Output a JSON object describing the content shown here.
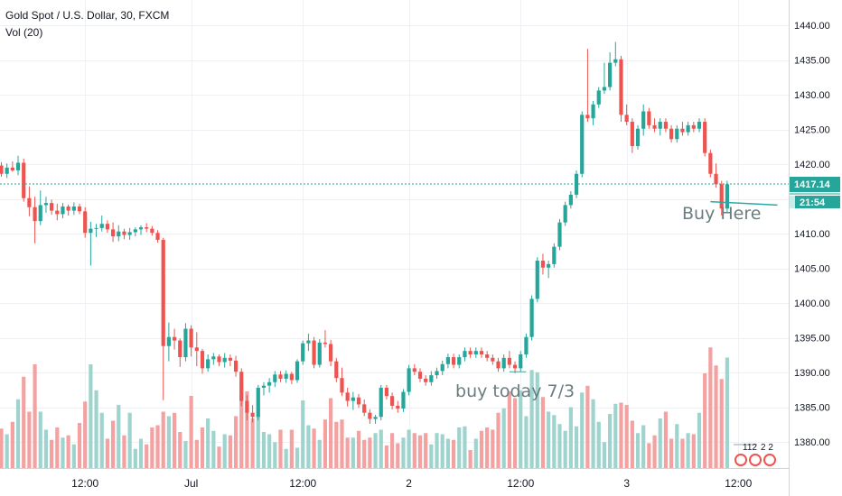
{
  "header": {
    "symbol_line": "Gold Spot / U.S. Dollar, 30, FXCM",
    "volume_line": "Vol (20)"
  },
  "colors": {
    "up": "#26a69a",
    "down": "#ef5350",
    "vol_up": "#9fd4ce",
    "vol_down": "#f3a1a1",
    "grid": "#eef0f3",
    "last_price": "#26a69a"
  },
  "price_tags": {
    "last_price": "1417.14",
    "countdown": "21:54"
  },
  "watermark_icons": [
    "tradingview-logo-icon",
    "flag-icon"
  ],
  "badge": {
    "value": "112",
    "counts": "2 2"
  },
  "chart_data": {
    "type": "candlestick",
    "y_ticks": [
      1380,
      1385,
      1390,
      1395,
      1400,
      1405,
      1410,
      1415,
      1420,
      1425,
      1430,
      1435,
      1440
    ],
    "y_tick_labels": [
      "1380.00",
      "1385.00",
      "1390.00",
      "1395.00",
      "1400.00",
      "1405.00",
      "1410.00",
      "1415.00",
      "1420.00",
      "1425.00",
      "1430.00",
      "1435.00",
      "1440.00"
    ],
    "ylim": [
      1376,
      1442
    ],
    "x_tick_labels": [
      "12:00",
      "Jul",
      "12:00",
      "2",
      "12:00",
      "3",
      "12:00"
    ],
    "x_tick_bars": [
      15,
      34,
      54,
      73,
      93,
      112,
      132
    ],
    "last_price": 1417.14,
    "annotations": [
      {
        "text": "buy today 7/3",
        "bar": 92,
        "price": 1386.5
      },
      {
        "text": "Buy Here",
        "bar": 129,
        "price": 1412.1
      }
    ],
    "candles": [
      [
        1419.8,
        1420.3,
        1418.2,
        1418.6
      ],
      [
        1418.6,
        1420.1,
        1418.0,
        1419.5
      ],
      [
        1419.5,
        1420.4,
        1418.9,
        1419.1
      ],
      [
        1419.1,
        1421.2,
        1418.4,
        1420.2
      ],
      [
        1420.2,
        1420.8,
        1414.6,
        1415.1
      ],
      [
        1415.1,
        1416.8,
        1412.5,
        1413.8
      ],
      [
        1413.8,
        1415.3,
        1408.6,
        1411.8
      ],
      [
        1411.8,
        1416.2,
        1411.2,
        1414.1
      ],
      [
        1414.1,
        1415.3,
        1413.0,
        1414.4
      ],
      [
        1414.4,
        1414.9,
        1412.7,
        1413.3
      ],
      [
        1413.3,
        1414.3,
        1411.9,
        1412.8
      ],
      [
        1412.8,
        1414.4,
        1412.2,
        1413.9
      ],
      [
        1413.9,
        1414.2,
        1412.6,
        1413.3
      ],
      [
        1413.3,
        1414.5,
        1412.7,
        1413.9
      ],
      [
        1413.9,
        1414.3,
        1412.8,
        1413.2
      ],
      [
        1413.2,
        1413.8,
        1409.4,
        1410.1
      ],
      [
        1410.1,
        1411.7,
        1405.4,
        1410.7
      ],
      [
        1410.7,
        1411.4,
        1409.5,
        1410.8
      ],
      [
        1410.8,
        1412.6,
        1410.3,
        1411.4
      ],
      [
        1411.4,
        1411.9,
        1410.1,
        1410.6
      ],
      [
        1410.6,
        1411.6,
        1408.8,
        1409.6
      ],
      [
        1409.6,
        1411.2,
        1408.9,
        1410.3
      ],
      [
        1410.3,
        1410.7,
        1409.2,
        1409.8
      ],
      [
        1409.8,
        1410.8,
        1409.1,
        1410.2
      ],
      [
        1410.2,
        1410.9,
        1409.6,
        1410.6
      ],
      [
        1410.6,
        1411.2,
        1409.8,
        1410.9
      ],
      [
        1410.9,
        1411.5,
        1410.2,
        1410.7
      ],
      [
        1410.7,
        1411.1,
        1409.7,
        1410.1
      ],
      [
        1410.1,
        1410.5,
        1408.7,
        1409.1
      ],
      [
        1409.1,
        1409.4,
        1386.0,
        1393.8
      ],
      [
        1393.8,
        1397.2,
        1391.6,
        1395.1
      ],
      [
        1395.1,
        1396.3,
        1393.3,
        1394.6
      ],
      [
        1394.6,
        1394.9,
        1390.8,
        1392.2
      ],
      [
        1392.2,
        1397.1,
        1391.6,
        1396.3
      ],
      [
        1396.3,
        1396.8,
        1392.3,
        1393.6
      ],
      [
        1393.6,
        1395.8,
        1390.9,
        1393.1
      ],
      [
        1393.1,
        1393.4,
        1389.8,
        1390.6
      ],
      [
        1390.6,
        1392.6,
        1390.1,
        1391.9
      ],
      [
        1391.9,
        1392.8,
        1391.1,
        1392.3
      ],
      [
        1392.3,
        1392.6,
        1390.9,
        1391.5
      ],
      [
        1391.5,
        1392.8,
        1390.7,
        1392.1
      ],
      [
        1392.1,
        1392.6,
        1390.9,
        1391.7
      ],
      [
        1391.7,
        1392.4,
        1389.4,
        1390.1
      ],
      [
        1390.1,
        1390.6,
        1385.1,
        1385.9
      ],
      [
        1385.9,
        1386.7,
        1383.1,
        1384.2
      ],
      [
        1384.2,
        1385.3,
        1382.8,
        1383.6
      ],
      [
        1383.6,
        1388.2,
        1383.1,
        1387.8
      ],
      [
        1387.8,
        1388.6,
        1386.7,
        1388.1
      ],
      [
        1388.1,
        1389.2,
        1387.1,
        1388.6
      ],
      [
        1388.6,
        1390.2,
        1387.9,
        1389.7
      ],
      [
        1389.7,
        1390.2,
        1388.6,
        1389.1
      ],
      [
        1389.1,
        1390.3,
        1388.5,
        1389.8
      ],
      [
        1389.8,
        1390.1,
        1388.3,
        1388.9
      ],
      [
        1388.9,
        1391.9,
        1388.5,
        1391.6
      ],
      [
        1391.6,
        1394.6,
        1391.1,
        1394.2
      ],
      [
        1394.2,
        1395.6,
        1393.1,
        1394.6
      ],
      [
        1394.6,
        1395.1,
        1390.6,
        1391.1
      ],
      [
        1391.1,
        1394.8,
        1390.7,
        1394.3
      ],
      [
        1394.3,
        1396.1,
        1393.6,
        1394.1
      ],
      [
        1394.1,
        1394.7,
        1390.9,
        1391.6
      ],
      [
        1391.6,
        1392.1,
        1388.6,
        1389.2
      ],
      [
        1389.2,
        1390.7,
        1386.6,
        1387.1
      ],
      [
        1387.1,
        1387.8,
        1385.1,
        1385.9
      ],
      [
        1385.9,
        1387.2,
        1384.6,
        1386.4
      ],
      [
        1386.4,
        1386.9,
        1384.9,
        1385.4
      ],
      [
        1385.4,
        1386.1,
        1383.7,
        1384.2
      ],
      [
        1384.2,
        1384.7,
        1382.6,
        1383.3
      ],
      [
        1383.3,
        1383.9,
        1382.6,
        1383.6
      ],
      [
        1383.6,
        1388.2,
        1383.1,
        1387.8
      ],
      [
        1387.8,
        1388.2,
        1386.1,
        1386.6
      ],
      [
        1386.6,
        1387.1,
        1384.7,
        1385.2
      ],
      [
        1385.2,
        1385.9,
        1384.2,
        1384.8
      ],
      [
        1384.8,
        1387.6,
        1384.3,
        1387.2
      ],
      [
        1387.2,
        1391.1,
        1386.7,
        1390.6
      ],
      [
        1390.6,
        1391.2,
        1389.6,
        1390.1
      ],
      [
        1390.1,
        1390.6,
        1388.6,
        1389.1
      ],
      [
        1389.1,
        1389.6,
        1388.1,
        1388.6
      ],
      [
        1388.6,
        1390.2,
        1388.1,
        1389.6
      ],
      [
        1389.6,
        1390.7,
        1389.1,
        1390.2
      ],
      [
        1390.2,
        1391.7,
        1389.6,
        1391.2
      ],
      [
        1391.2,
        1392.7,
        1390.6,
        1392.2
      ],
      [
        1392.2,
        1392.7,
        1390.6,
        1391.1
      ],
      [
        1391.1,
        1392.6,
        1390.6,
        1392.2
      ],
      [
        1392.2,
        1393.6,
        1391.6,
        1393.1
      ],
      [
        1393.1,
        1393.6,
        1392.1,
        1392.6
      ],
      [
        1392.6,
        1393.6,
        1392.1,
        1393.1
      ],
      [
        1393.1,
        1393.6,
        1392.1,
        1392.6
      ],
      [
        1392.6,
        1393.1,
        1391.6,
        1392.1
      ],
      [
        1392.1,
        1392.6,
        1391.1,
        1391.6
      ],
      [
        1391.6,
        1392.1,
        1390.1,
        1390.6
      ],
      [
        1390.6,
        1392.6,
        1390.1,
        1392.1
      ],
      [
        1392.1,
        1393.1,
        1390.6,
        1391.1
      ],
      [
        1391.1,
        1391.6,
        1389.9,
        1390.6
      ],
      [
        1390.6,
        1393.1,
        1390.1,
        1392.6
      ],
      [
        1392.6,
        1395.6,
        1392.1,
        1395.1
      ],
      [
        1395.1,
        1401.1,
        1394.6,
        1400.6
      ],
      [
        1400.6,
        1406.6,
        1400.1,
        1406.1
      ],
      [
        1406.1,
        1407.1,
        1404.1,
        1405.1
      ],
      [
        1405.1,
        1406.1,
        1403.6,
        1405.6
      ],
      [
        1405.6,
        1408.6,
        1405.1,
        1408.1
      ],
      [
        1408.1,
        1412.1,
        1407.6,
        1411.6
      ],
      [
        1411.6,
        1414.6,
        1411.1,
        1414.1
      ],
      [
        1414.1,
        1416.1,
        1413.6,
        1415.6
      ],
      [
        1415.6,
        1419.1,
        1415.1,
        1418.6
      ],
      [
        1418.6,
        1427.6,
        1418.1,
        1427.1
      ],
      [
        1427.1,
        1436.6,
        1426.1,
        1426.6
      ],
      [
        1426.6,
        1429.1,
        1425.6,
        1428.6
      ],
      [
        1428.6,
        1431.1,
        1428.1,
        1430.6
      ],
      [
        1430.6,
        1434.6,
        1430.1,
        1431.1
      ],
      [
        1431.1,
        1436.1,
        1430.6,
        1434.6
      ],
      [
        1434.6,
        1437.6,
        1434.1,
        1435.1
      ],
      [
        1435.1,
        1435.6,
        1426.1,
        1427.1
      ],
      [
        1427.1,
        1428.6,
        1425.6,
        1426.1
      ],
      [
        1426.1,
        1426.6,
        1421.6,
        1422.6
      ],
      [
        1422.6,
        1425.6,
        1422.1,
        1425.1
      ],
      [
        1425.1,
        1428.6,
        1424.1,
        1427.6
      ],
      [
        1427.6,
        1428.1,
        1425.1,
        1425.6
      ],
      [
        1425.6,
        1426.6,
        1424.6,
        1425.1
      ],
      [
        1425.1,
        1426.6,
        1424.1,
        1426.1
      ],
      [
        1426.1,
        1426.6,
        1424.6,
        1425.1
      ],
      [
        1425.1,
        1425.6,
        1423.1,
        1423.6
      ],
      [
        1423.6,
        1425.6,
        1423.1,
        1425.1
      ],
      [
        1425.1,
        1426.1,
        1424.1,
        1424.6
      ],
      [
        1424.6,
        1426.1,
        1424.1,
        1425.6
      ],
      [
        1425.6,
        1426.1,
        1424.6,
        1425.1
      ],
      [
        1425.1,
        1426.6,
        1424.6,
        1426.1
      ],
      [
        1426.1,
        1426.6,
        1421.1,
        1421.6
      ],
      [
        1421.6,
        1422.1,
        1418.1,
        1418.6
      ],
      [
        1418.6,
        1420.1,
        1416.6,
        1417.1
      ],
      [
        1417.1,
        1417.6,
        1412.6,
        1413.6
      ],
      [
        1413.6,
        1417.6,
        1413.1,
        1417.1
      ]
    ],
    "volumes": [
      3.5,
      3.0,
      4.1,
      6.1,
      8.1,
      5.0,
      9.2,
      5.0,
      3.4,
      2.5,
      3.6,
      2.7,
      2.9,
      2.1,
      4.0,
      5.9,
      9.2,
      6.9,
      4.9,
      2.6,
      4.2,
      5.6,
      2.9,
      4.9,
      1.7,
      2.6,
      2.1,
      3.6,
      3.8,
      5.0,
      4.6,
      4.9,
      3.2,
      2.4,
      6.4,
      2.5,
      3.6,
      4.4,
      3.3,
      1.9,
      3.0,
      2.9,
      4.6,
      7.7,
      6.8,
      4.4,
      4.7,
      3.2,
      3.0,
      2.3,
      3.4,
      1.7,
      3.4,
      1.8,
      6.0,
      3.8,
      3.5,
      2.5,
      4.3,
      6.2,
      4.1,
      4.3,
      2.7,
      2.7,
      3.3,
      2.5,
      2.7,
      3.1,
      3.4,
      2.0,
      3.1,
      2.2,
      2.7,
      3.4,
      3.1,
      2.9,
      3.1,
      2.1,
      3.1,
      3.0,
      2.6,
      2.5,
      3.6,
      3.7,
      1.6,
      2.6,
      3.3,
      3.6,
      3.4,
      4.9,
      5.3,
      6.8,
      6.2,
      6.9,
      4.6,
      8.7,
      8.5,
      6.3,
      5.0,
      4.7,
      3.9,
      3.3,
      5.4,
      3.7,
      6.7,
      7.3,
      6.1,
      4.1,
      2.3,
      4.8,
      5.7,
      5.8,
      5.6,
      4.2,
      3.1,
      3.8,
      2.2,
      2.9,
      4.4,
      5.0,
      2.6,
      3.9,
      2.6,
      3.1,
      3.0,
      4.9,
      8.4,
      10.7,
      9.1,
      7.9,
      9.8
    ]
  }
}
